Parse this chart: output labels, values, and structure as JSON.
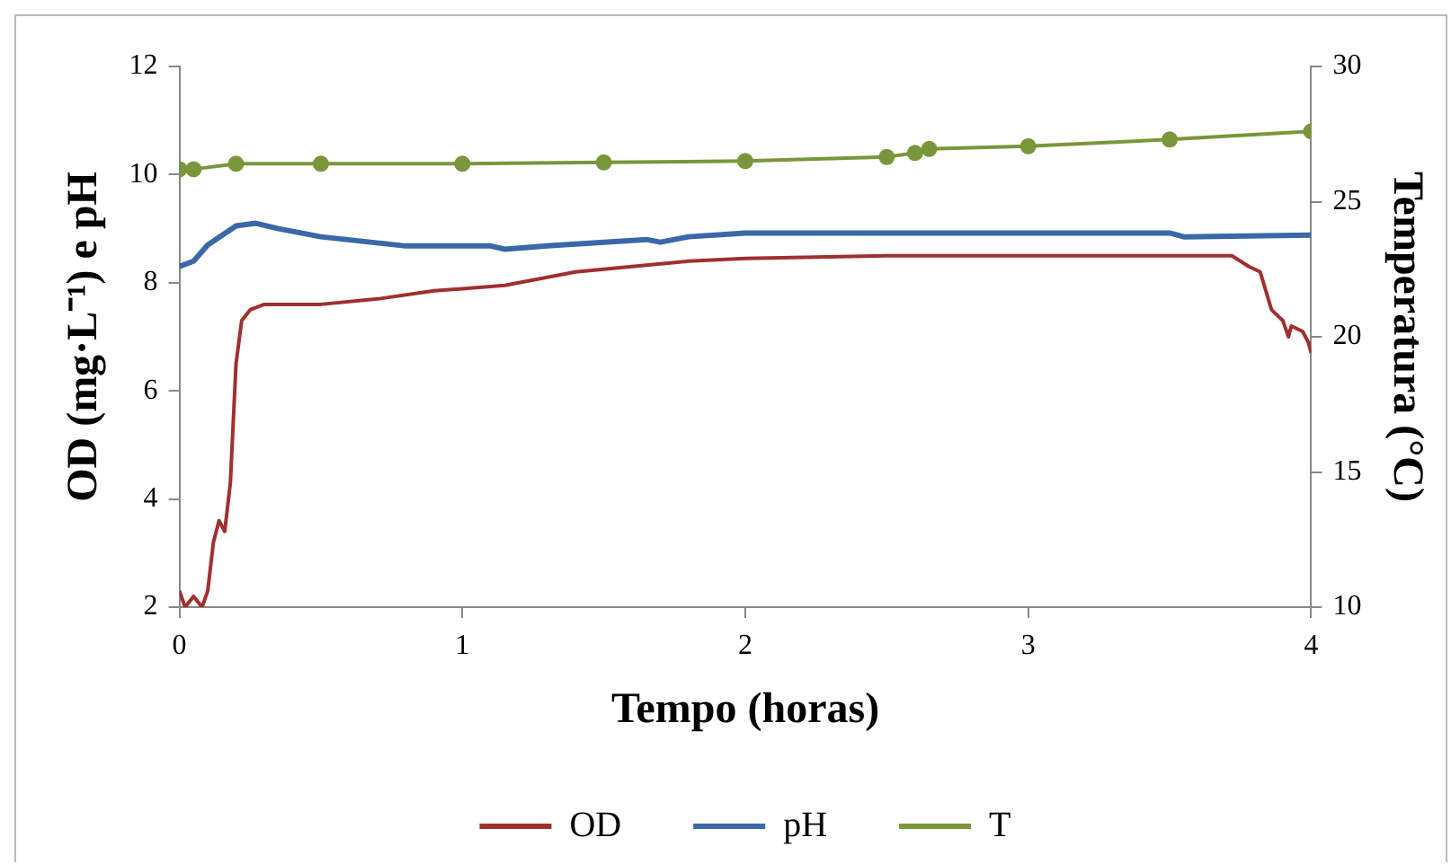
{
  "chart_data": {
    "type": "line",
    "xlabel": "Tempo (horas)",
    "ylabel": "OD (mg·L⁻¹) e pH",
    "y2label": "Temperatura (°C)",
    "xlim": [
      0,
      4
    ],
    "xticks": [
      0,
      1,
      2,
      3,
      4
    ],
    "ylim": [
      2,
      12
    ],
    "yticks": [
      2,
      4,
      6,
      8,
      10,
      12
    ],
    "y2lim": [
      10,
      30
    ],
    "y2ticks": [
      10,
      15,
      20,
      25,
      30
    ],
    "grid": false,
    "legend": "bottom",
    "series": [
      {
        "name": "OD",
        "color": "#a0302e",
        "marker": "none",
        "x": [
          0,
          0.02,
          0.05,
          0.08,
          0.1,
          0.12,
          0.14,
          0.16,
          0.18,
          0.2,
          0.22,
          0.25,
          0.3,
          0.5,
          0.7,
          0.9,
          1.15,
          1.2,
          1.4,
          1.6,
          1.8,
          2.0,
          2.5,
          3.0,
          3.5,
          3.72,
          3.78,
          3.82,
          3.86,
          3.9,
          3.92,
          3.93,
          3.97,
          3.99,
          4.0
        ],
        "values": [
          2.3,
          2.0,
          2.2,
          2.0,
          2.3,
          3.2,
          3.6,
          3.4,
          4.3,
          6.5,
          7.3,
          7.5,
          7.6,
          7.6,
          7.7,
          7.85,
          7.95,
          8.0,
          8.2,
          8.3,
          8.4,
          8.45,
          8.5,
          8.5,
          8.5,
          8.5,
          8.3,
          8.2,
          7.5,
          7.3,
          7.0,
          7.2,
          7.1,
          6.9,
          6.7
        ]
      },
      {
        "name": "pH",
        "color": "#3a68a8",
        "marker": "none",
        "x": [
          0,
          0.05,
          0.1,
          0.2,
          0.27,
          0.35,
          0.5,
          0.8,
          1.1,
          1.15,
          1.3,
          1.5,
          1.65,
          1.7,
          1.8,
          2.0,
          2.5,
          3.0,
          3.5,
          3.55,
          4.0
        ],
        "values": [
          8.3,
          8.4,
          8.7,
          9.05,
          9.1,
          9.0,
          8.85,
          8.68,
          8.68,
          8.62,
          8.68,
          8.75,
          8.8,
          8.75,
          8.85,
          8.92,
          8.92,
          8.92,
          8.92,
          8.85,
          8.88
        ]
      },
      {
        "name": "T",
        "color": "#7a963a",
        "marker": "circle",
        "axis": "y2",
        "x": [
          0,
          0.05,
          0.2,
          0.5,
          1.0,
          1.5,
          2.0,
          2.5,
          2.6,
          2.65,
          3.0,
          3.5,
          4.0
        ],
        "values": [
          26.2,
          26.2,
          26.4,
          26.4,
          26.4,
          26.45,
          26.5,
          26.65,
          26.8,
          26.95,
          27.05,
          27.3,
          27.6
        ]
      }
    ]
  }
}
